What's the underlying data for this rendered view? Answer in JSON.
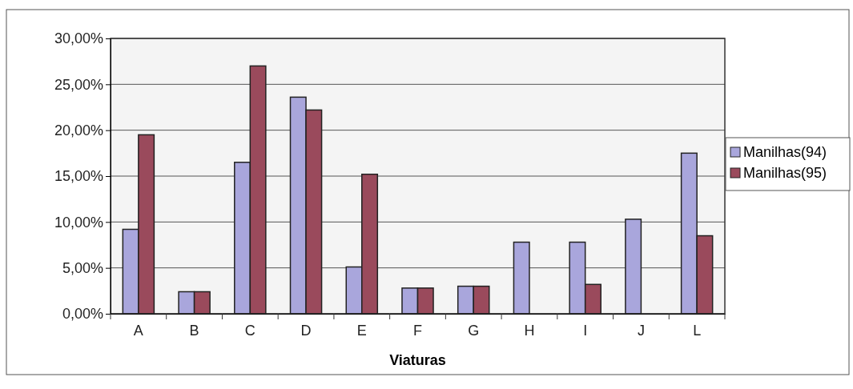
{
  "chart_data": {
    "type": "bar",
    "xlabel": "Viaturas",
    "categories": [
      "A",
      "B",
      "C",
      "D",
      "E",
      "F",
      "G",
      "H",
      "I",
      "J",
      "L"
    ],
    "series": [
      {
        "name": "Manilhas(94)",
        "color": "#a9a6dc",
        "values": [
          9.2,
          2.4,
          16.5,
          23.6,
          5.1,
          2.8,
          3,
          7.8,
          7.8,
          10.3,
          17.5
        ]
      },
      {
        "name": "Manilhas(95)",
        "color": "#9a4a5c",
        "values": [
          19.5,
          2.4,
          27,
          22.2,
          15.2,
          2.8,
          3,
          0,
          3.2,
          0,
          8.5
        ]
      }
    ],
    "ylim": [
      0,
      30
    ],
    "yticks": [
      {
        "value": 0,
        "label": "0,00%"
      },
      {
        "value": 5,
        "label": "5,00%"
      },
      {
        "value": 10,
        "label": "10,00%"
      },
      {
        "value": 15,
        "label": "15,00%"
      },
      {
        "value": 20,
        "label": "20,00%"
      },
      {
        "value": 25,
        "label": "25,00%"
      },
      {
        "value": 30,
        "label": "30,00%"
      }
    ],
    "grid": "y",
    "legend": "right"
  }
}
